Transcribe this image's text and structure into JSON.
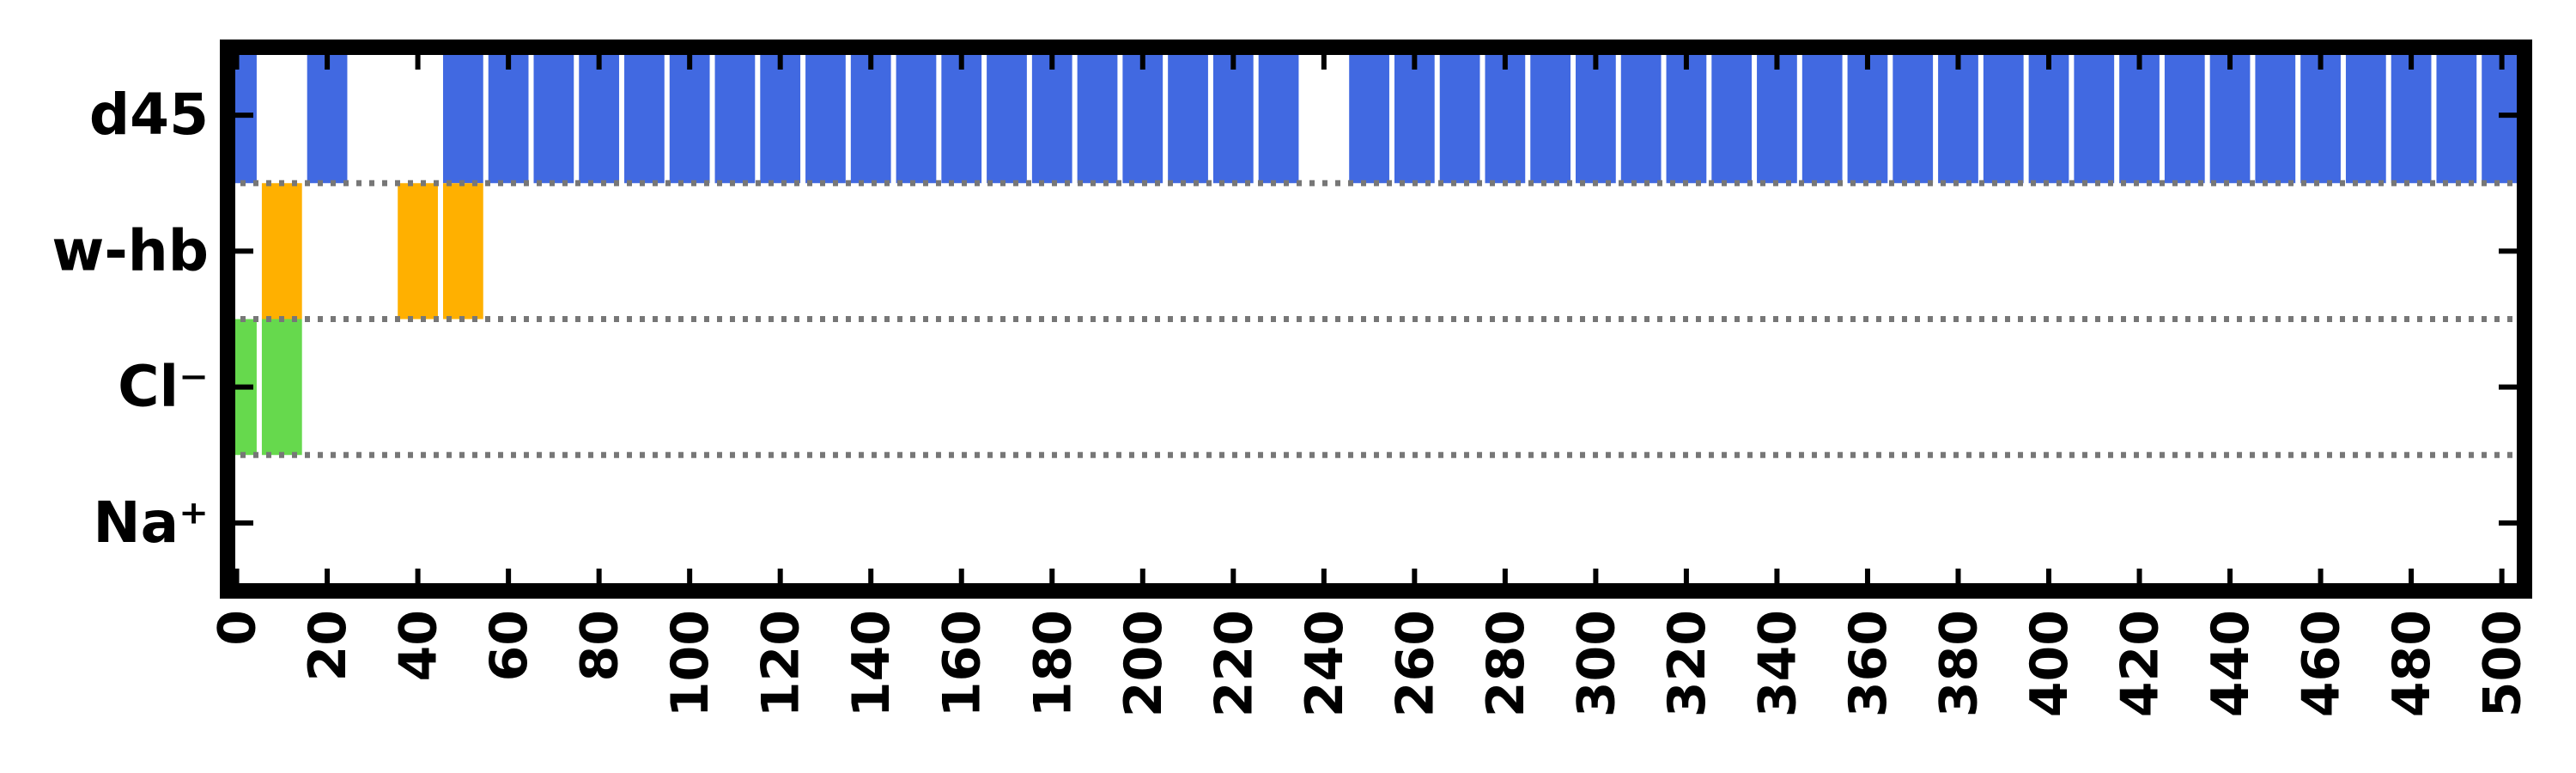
{
  "chart_data": {
    "type": "bar",
    "orientation": "event-raster",
    "rows": [
      "d45",
      "w-hb",
      "Cl⁻",
      "Na⁺"
    ],
    "xlim": [
      -2,
      505
    ],
    "xticks": [
      0,
      20,
      40,
      60,
      80,
      100,
      120,
      140,
      160,
      180,
      200,
      220,
      240,
      260,
      280,
      300,
      320,
      340,
      360,
      380,
      400,
      420,
      440,
      460,
      480,
      500
    ],
    "xtick_labels": [
      "0",
      "20",
      "40",
      "60",
      "80",
      "100",
      "120",
      "140",
      "160",
      "180",
      "200",
      "220",
      "240",
      "260",
      "280",
      "300",
      "320",
      "340",
      "360",
      "380",
      "400",
      "420",
      "440",
      "460",
      "480",
      "500"
    ],
    "bin_width": 10,
    "series": [
      {
        "name": "d45",
        "color": "#4169e1",
        "x": [
          0,
          20,
          50,
          60,
          70,
          80,
          90,
          100,
          110,
          120,
          130,
          140,
          150,
          160,
          170,
          180,
          190,
          200,
          210,
          220,
          230,
          250,
          260,
          270,
          280,
          290,
          300,
          310,
          320,
          330,
          340,
          350,
          360,
          370,
          380,
          390,
          400,
          410,
          420,
          430,
          440,
          450,
          460,
          470,
          480,
          490,
          500
        ]
      },
      {
        "name": "w-hb",
        "color": "#ffb000",
        "x": [
          10,
          40,
          50
        ]
      },
      {
        "name": "Cl⁻",
        "color": "#66d94d",
        "x": [
          0,
          10
        ]
      },
      {
        "name": "Na⁺",
        "color": "#7f7f7f",
        "x": []
      }
    ],
    "grid": "dotted row separators",
    "title": "",
    "xlabel": "",
    "ylabel": ""
  }
}
